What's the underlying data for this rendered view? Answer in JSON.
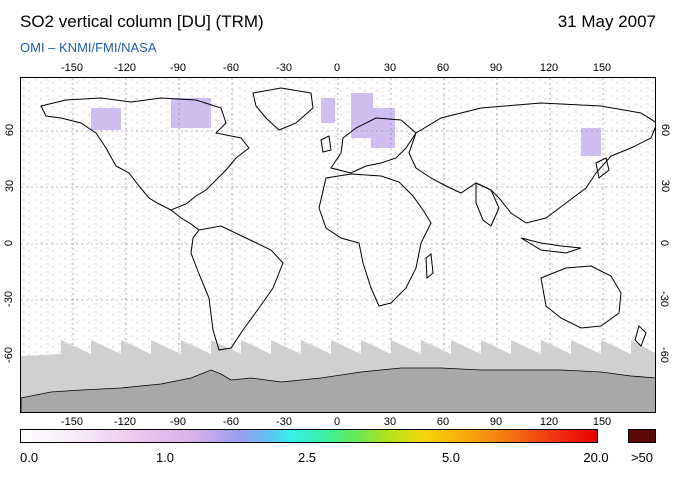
{
  "header": {
    "title": "SO2 vertical column [DU] (TRM)",
    "date": "31 May 2007",
    "source": "OMI  –  KNMI/FMI/NASA"
  },
  "axes": {
    "lon_ticks": [
      "-150",
      "-120",
      "-90",
      "-60",
      "-30",
      "0",
      "30",
      "60",
      "90",
      "120",
      "150"
    ],
    "lat_ticks": [
      "60",
      "30",
      "0",
      "-30",
      "-60"
    ]
  },
  "colorbar": {
    "labels": [
      "0.0",
      "1.0",
      "2.5",
      "5.0",
      "20.0"
    ],
    "overflow_label": ">50",
    "overflow_color": "#5c0a08",
    "scale_colors": [
      "#ffffff",
      "#ecc9ee",
      "#9a9ef0",
      "#38f0e6",
      "#66e858",
      "#f4d60a",
      "#f46a10",
      "#e50000"
    ]
  },
  "map": {
    "no_data_color": "#d0d0d0",
    "ice_color": "#a8a8a8",
    "coast_color": "#000000"
  }
}
